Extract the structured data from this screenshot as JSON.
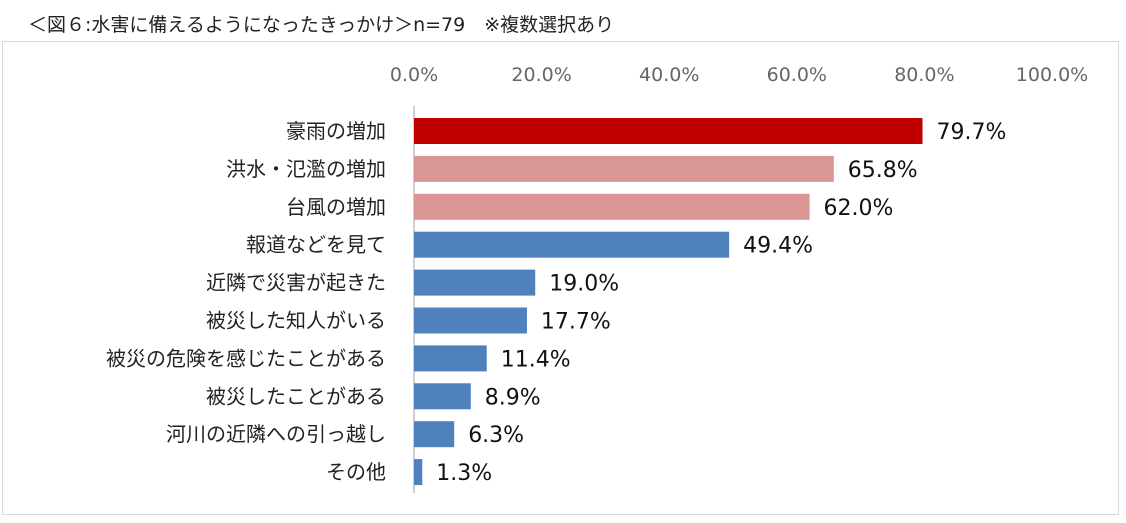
{
  "title": "＜図６:水害に備えるようになったきっかけ＞n=79　※複数選択あり",
  "chart_data": {
    "type": "bar",
    "orientation": "horizontal",
    "title": "＜図６:水害に備えるようになったきっかけ＞n=79　※複数選択あり",
    "xlim": [
      0,
      100
    ],
    "ticks": [
      "0.0%",
      "20.0%",
      "40.0%",
      "60.0%",
      "80.0%",
      "100.0%"
    ],
    "tick_values": [
      0,
      20,
      40,
      60,
      80,
      100
    ],
    "grid": false,
    "categories": [
      "豪雨の増加",
      "洪水・氾濫の増加",
      "台風の増加",
      "報道などを見て",
      "近隣で災害が起きた",
      "被災した知人がいる",
      "被災の危険を感じたことがある",
      "被災したことがある",
      "河川の近隣への引っ越し",
      "その他"
    ],
    "values": [
      79.7,
      65.8,
      62.0,
      49.4,
      19.0,
      17.7,
      11.4,
      8.9,
      6.3,
      1.3
    ],
    "value_labels": [
      "79.7%",
      "65.8%",
      "62.0%",
      "49.4%",
      "19.0%",
      "17.7%",
      "11.4%",
      "8.9%",
      "6.3%",
      "1.3%"
    ],
    "colors": [
      "#c00000",
      "#da9694",
      "#da9694",
      "#4f81bd",
      "#4f81bd",
      "#4f81bd",
      "#4f81bd",
      "#4f81bd",
      "#4f81bd",
      "#4f81bd"
    ]
  }
}
